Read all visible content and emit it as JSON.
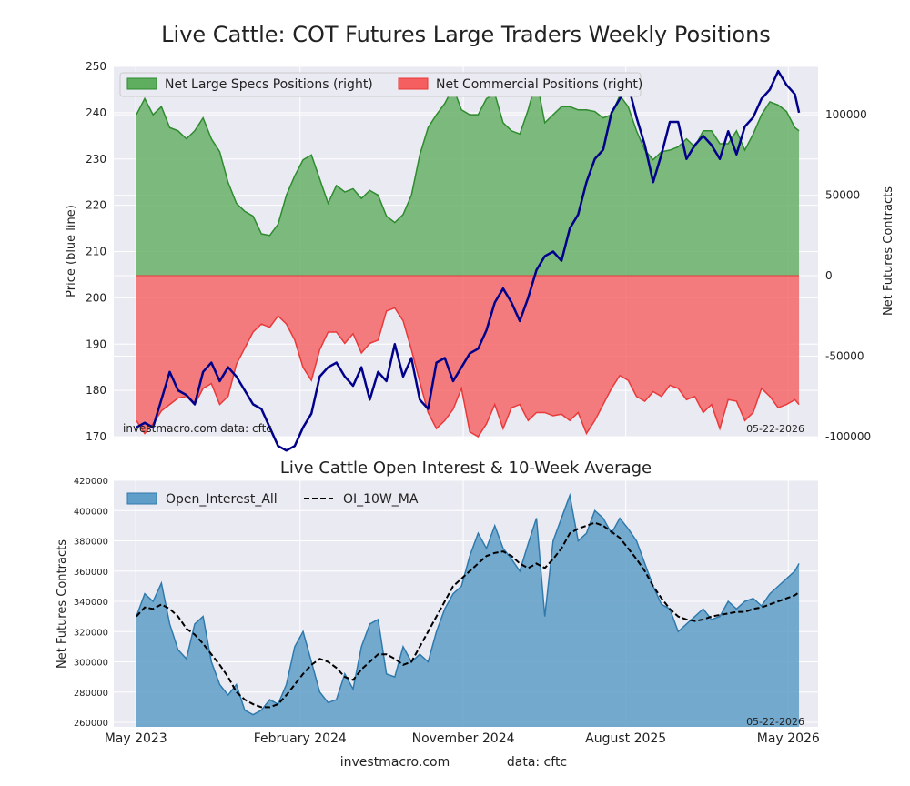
{
  "figure": {
    "title": "Live Cattle: COT Futures Large Traders Weekly Positions",
    "footer_site": "investmacro.com",
    "footer_source": "data: cftc"
  },
  "colors": {
    "background": "#eaeaf2",
    "grid": "#ffffff",
    "specs_fill": "#5fad5f",
    "specs_line": "#2e8b2e",
    "comm_fill": "#f55f5f",
    "comm_line": "#e83a3a",
    "price_line": "#00008b",
    "oi_fill": "#5f9ec8",
    "oi_line": "#2f7aad",
    "ma_line": "#000000"
  },
  "chart_data": [
    {
      "type": "area",
      "title": "",
      "ylabel_left": "Price (blue line)",
      "ylabel_right": "Net Futures Contracts",
      "ylim_left": [
        170,
        250
      ],
      "ylim_right": [
        -100000,
        130000
      ],
      "yticks_left": [
        170,
        180,
        190,
        200,
        210,
        220,
        230,
        240,
        250
      ],
      "yticks_right": [
        -100000,
        -50000,
        0,
        50000,
        100000
      ],
      "legend_position": "top-left",
      "watermark_left": "investmacro.com   data: cftc",
      "watermark_right": "05-22-2026",
      "grid": true,
      "dates": [
        "2023-05-02",
        "2023-05-16",
        "2023-05-30",
        "2023-06-13",
        "2023-06-27",
        "2023-07-11",
        "2023-07-25",
        "2023-08-08",
        "2023-08-22",
        "2023-09-05",
        "2023-09-19",
        "2023-10-03",
        "2023-10-17",
        "2023-10-31",
        "2023-11-14",
        "2023-11-28",
        "2023-12-12",
        "2023-12-26",
        "2024-01-09",
        "2024-01-23",
        "2024-02-06",
        "2024-02-20",
        "2024-03-05",
        "2024-03-19",
        "2024-04-02",
        "2024-04-16",
        "2024-04-30",
        "2024-05-14",
        "2024-05-28",
        "2024-06-11",
        "2024-06-25",
        "2024-07-09",
        "2024-07-23",
        "2024-08-06",
        "2024-08-20",
        "2024-09-03",
        "2024-09-17",
        "2024-10-01",
        "2024-10-15",
        "2024-10-29",
        "2024-11-12",
        "2024-11-26",
        "2024-12-10",
        "2024-12-24",
        "2025-01-07",
        "2025-01-21",
        "2025-02-04",
        "2025-02-18",
        "2025-03-04",
        "2025-03-18",
        "2025-04-01",
        "2025-04-15",
        "2025-04-29",
        "2025-05-13",
        "2025-05-27",
        "2025-06-10",
        "2025-06-24",
        "2025-07-08",
        "2025-07-22",
        "2025-08-05",
        "2025-08-19",
        "2025-09-02",
        "2025-09-16",
        "2025-09-30",
        "2025-10-14",
        "2025-10-28",
        "2025-11-11",
        "2025-11-25",
        "2025-12-09",
        "2025-12-23",
        "2026-01-06",
        "2026-01-20",
        "2026-02-03",
        "2026-02-17",
        "2026-03-03",
        "2026-03-17",
        "2026-03-31",
        "2026-04-14",
        "2026-04-28",
        "2026-05-12",
        "2026-05-19"
      ],
      "series": [
        {
          "name": "Net Large Specs Positions (right)",
          "axis": "right",
          "values": [
            100000,
            110000,
            100000,
            105000,
            92000,
            90000,
            85000,
            90000,
            98000,
            85000,
            77000,
            58000,
            45000,
            40000,
            37000,
            26000,
            25000,
            32000,
            50000,
            62000,
            72000,
            75000,
            60000,
            45000,
            56000,
            52000,
            54000,
            48000,
            53000,
            50000,
            37000,
            33000,
            38000,
            50000,
            75000,
            92000,
            100000,
            107000,
            117000,
            103000,
            100000,
            100000,
            110000,
            113000,
            95000,
            90000,
            88000,
            103000,
            122000,
            95000,
            100000,
            105000,
            105000,
            103000,
            103000,
            102000,
            98000,
            100000,
            112000,
            105000,
            90000,
            78000,
            72000,
            77000,
            78000,
            80000,
            85000,
            80000,
            90000,
            90000,
            82000,
            82000,
            90000,
            78000,
            88000,
            100000,
            108000,
            106000,
            102000,
            92000,
            90000
          ]
        },
        {
          "name": "Net Commercial Positions (right)",
          "axis": "right",
          "values": [
            -90000,
            -98000,
            -92000,
            -84000,
            -80000,
            -76000,
            -75000,
            -80000,
            -70000,
            -67000,
            -80000,
            -75000,
            -55000,
            -45000,
            -35000,
            -30000,
            -32000,
            -25000,
            -30000,
            -40000,
            -57000,
            -65000,
            -46000,
            -35000,
            -35000,
            -42000,
            -36000,
            -48000,
            -42000,
            -40000,
            -22000,
            -20000,
            -28000,
            -46000,
            -66000,
            -85000,
            -95000,
            -90000,
            -83000,
            -70000,
            -97000,
            -100000,
            -92000,
            -80000,
            -95000,
            -82000,
            -80000,
            -90000,
            -85000,
            -85000,
            -87000,
            -86000,
            -90000,
            -85000,
            -98000,
            -90000,
            -80000,
            -70000,
            -62000,
            -65000,
            -75000,
            -78000,
            -72000,
            -75000,
            -68000,
            -70000,
            -77000,
            -75000,
            -85000,
            -80000,
            -95000,
            -77000,
            -78000,
            -90000,
            -85000,
            -70000,
            -75000,
            -82000,
            -80000,
            -77000,
            -80000
          ]
        },
        {
          "name": "Price",
          "axis": "left",
          "values": [
            172,
            173,
            172,
            178,
            184,
            180,
            179,
            177,
            184,
            186,
            182,
            185,
            183,
            180,
            177,
            176,
            172,
            168,
            167,
            168,
            172,
            175,
            183,
            185,
            186,
            183,
            181,
            185,
            178,
            184,
            182,
            190,
            183,
            187,
            178,
            176,
            186,
            187,
            182,
            185,
            188,
            189,
            193,
            199,
            202,
            199,
            195,
            200,
            206,
            209,
            210,
            208,
            215,
            218,
            225,
            230,
            232,
            240,
            243,
            246,
            239,
            233,
            225,
            231,
            238,
            238,
            230,
            233,
            235,
            233,
            230,
            236,
            231,
            237,
            239,
            243,
            245,
            249,
            246,
            244,
            240
          ]
        }
      ],
      "xtick_labels": [
        "May 2023",
        "February 2024",
        "November 2024",
        "August 2025",
        "May 2026"
      ],
      "xtick_dates": [
        "2023-05-01",
        "2024-02-01",
        "2024-11-01",
        "2025-08-01",
        "2026-05-01"
      ]
    },
    {
      "type": "area",
      "title": "Live Cattle Open Interest & 10-Week Average",
      "ylabel_left": "Net Futures Contracts",
      "ylim_left": [
        257000,
        420000
      ],
      "yticks_left": [
        260000,
        280000,
        300000,
        320000,
        340000,
        360000,
        380000,
        400000,
        420000
      ],
      "legend_position": "top-left",
      "watermark_right": "05-22-2026",
      "grid": true,
      "dates": [
        "2023-05-02",
        "2023-05-16",
        "2023-05-30",
        "2023-06-13",
        "2023-06-27",
        "2023-07-11",
        "2023-07-25",
        "2023-08-08",
        "2023-08-22",
        "2023-09-05",
        "2023-09-19",
        "2023-10-03",
        "2023-10-17",
        "2023-10-31",
        "2023-11-14",
        "2023-11-28",
        "2023-12-12",
        "2023-12-26",
        "2024-01-09",
        "2024-01-23",
        "2024-02-06",
        "2024-02-20",
        "2024-03-05",
        "2024-03-19",
        "2024-04-02",
        "2024-04-16",
        "2024-04-30",
        "2024-05-14",
        "2024-05-28",
        "2024-06-11",
        "2024-06-25",
        "2024-07-09",
        "2024-07-23",
        "2024-08-06",
        "2024-08-20",
        "2024-09-03",
        "2024-09-17",
        "2024-10-01",
        "2024-10-15",
        "2024-10-29",
        "2024-11-12",
        "2024-11-26",
        "2024-12-10",
        "2024-12-24",
        "2025-01-07",
        "2025-01-21",
        "2025-02-04",
        "2025-02-18",
        "2025-03-04",
        "2025-03-18",
        "2025-04-01",
        "2025-04-15",
        "2025-04-29",
        "2025-05-13",
        "2025-05-27",
        "2025-06-10",
        "2025-06-24",
        "2025-07-08",
        "2025-07-22",
        "2025-08-05",
        "2025-08-19",
        "2025-09-02",
        "2025-09-16",
        "2025-09-30",
        "2025-10-14",
        "2025-10-28",
        "2025-11-11",
        "2025-11-25",
        "2025-12-09",
        "2025-12-23",
        "2026-01-06",
        "2026-01-20",
        "2026-02-03",
        "2026-02-17",
        "2026-03-03",
        "2026-03-17",
        "2026-03-31",
        "2026-04-14",
        "2026-04-28",
        "2026-05-12",
        "2026-05-19"
      ],
      "series": [
        {
          "name": "Open_Interest_All",
          "values": [
            330000,
            345000,
            340000,
            352000,
            325000,
            308000,
            302000,
            325000,
            330000,
            300000,
            285000,
            278000,
            285000,
            268000,
            265000,
            268000,
            275000,
            272000,
            285000,
            310000,
            320000,
            300000,
            280000,
            273000,
            275000,
            292000,
            282000,
            310000,
            325000,
            328000,
            292000,
            290000,
            310000,
            300000,
            305000,
            300000,
            320000,
            335000,
            345000,
            350000,
            370000,
            385000,
            375000,
            390000,
            375000,
            368000,
            360000,
            378000,
            395000,
            330000,
            380000,
            395000,
            410000,
            380000,
            385000,
            400000,
            395000,
            385000,
            395000,
            388000,
            380000,
            365000,
            350000,
            338000,
            335000,
            320000,
            325000,
            330000,
            335000,
            328000,
            330000,
            340000,
            335000,
            340000,
            342000,
            337000,
            345000,
            350000,
            355000,
            360000,
            365000
          ]
        },
        {
          "name": "OI_10W_MA",
          "values": [
            330000,
            336000,
            335000,
            338000,
            335000,
            330000,
            322000,
            318000,
            312000,
            305000,
            298000,
            290000,
            280000,
            275000,
            272000,
            270000,
            270000,
            272000,
            278000,
            285000,
            292000,
            298000,
            302000,
            300000,
            296000,
            290000,
            288000,
            295000,
            300000,
            305000,
            305000,
            302000,
            298000,
            300000,
            310000,
            320000,
            330000,
            340000,
            350000,
            355000,
            360000,
            365000,
            370000,
            372000,
            373000,
            370000,
            365000,
            362000,
            365000,
            362000,
            368000,
            375000,
            385000,
            388000,
            390000,
            392000,
            390000,
            386000,
            382000,
            375000,
            368000,
            360000,
            350000,
            342000,
            335000,
            330000,
            328000,
            327000,
            328000,
            330000,
            331000,
            332000,
            333000,
            333000,
            335000,
            336000,
            338000,
            340000,
            342000,
            344000,
            346000
          ]
        }
      ],
      "xtick_labels": [
        "May 2023",
        "February 2024",
        "November 2024",
        "August 2025",
        "May 2026"
      ],
      "xtick_dates": [
        "2023-05-01",
        "2024-02-01",
        "2024-11-01",
        "2025-08-01",
        "2026-05-01"
      ]
    }
  ]
}
